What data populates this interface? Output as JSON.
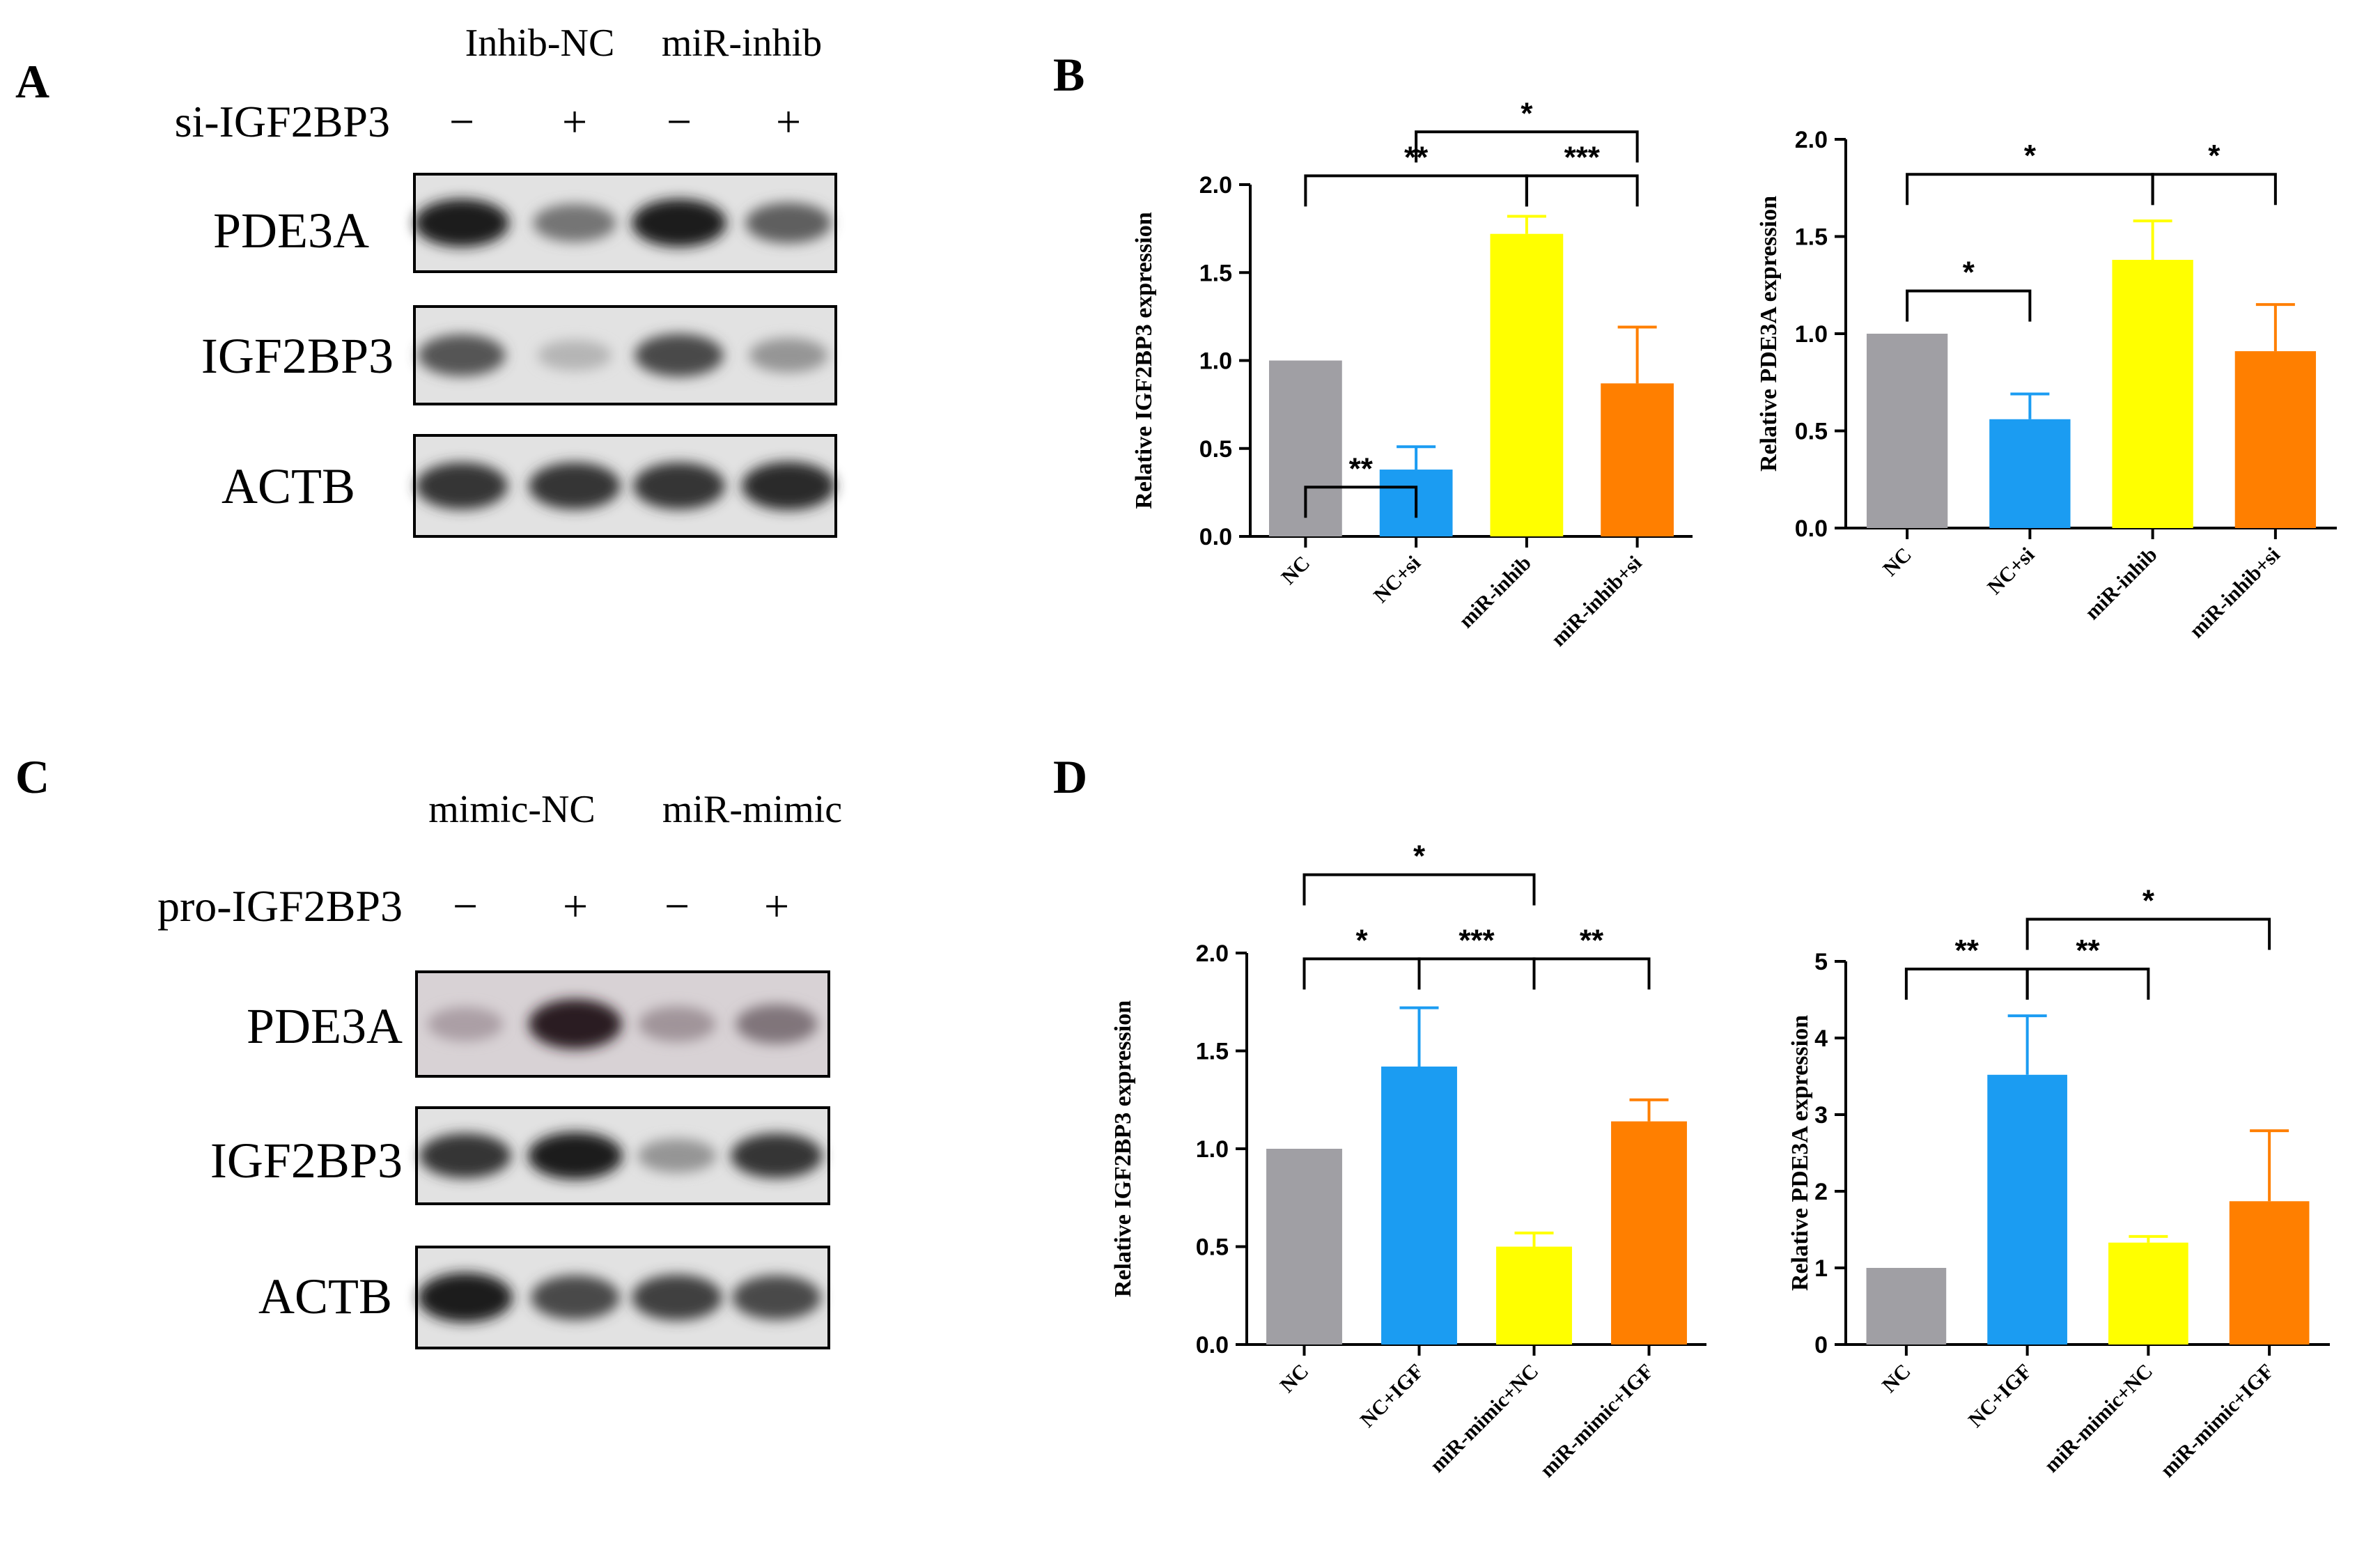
{
  "panels": {
    "A": {
      "letter": "A",
      "group_labels": [
        "Inhib-NC",
        "miR-inhib"
      ],
      "treatment_label": "si-IGF2BP3",
      "signs": [
        "−",
        "+",
        "−",
        "+"
      ],
      "blot_labels": [
        "PDE3A",
        "IGF2BP3",
        "ACTB"
      ],
      "band_intensity": [
        [
          0.95,
          0.55,
          0.95,
          0.65
        ],
        [
          0.7,
          0.25,
          0.75,
          0.4
        ],
        [
          0.85,
          0.85,
          0.85,
          0.9
        ]
      ]
    },
    "B": {
      "letter": "B"
    },
    "C": {
      "letter": "C",
      "group_labels": [
        "mimic-NC",
        "miR-mimic"
      ],
      "treatment_label": "pro-IGF2BP3",
      "signs": [
        "−",
        "+",
        "−",
        "+"
      ],
      "blot_labels": [
        "PDE3A",
        "IGF2BP3",
        "ACTB"
      ],
      "band_intensity": [
        [
          0.3,
          0.9,
          0.35,
          0.5
        ],
        [
          0.85,
          0.95,
          0.4,
          0.85
        ],
        [
          0.95,
          0.75,
          0.8,
          0.75
        ]
      ]
    },
    "D": {
      "letter": "D"
    }
  },
  "chart_data": [
    {
      "id": "B1",
      "type": "bar",
      "ylabel": "Relative IGF2BP3 expression",
      "categories": [
        "NC",
        "NC+si",
        "miR-inhib",
        "miR-inhib+si"
      ],
      "values": [
        1.0,
        0.38,
        1.72,
        0.87
      ],
      "errors": [
        0,
        0.13,
        0.1,
        0.32
      ],
      "ylim": [
        0,
        2.0
      ],
      "yticks": [
        "0.0",
        "0.5",
        "1.0",
        "1.5",
        "2.0"
      ],
      "colors": [
        "#a09fa4",
        "#1b9cf2",
        "#ffff00",
        "#ff7f00"
      ],
      "significance": [
        {
          "from": 0,
          "to": 1,
          "label": "**",
          "level": 0.28
        },
        {
          "from": 0,
          "to": 2,
          "label": "**",
          "level": 2.05
        },
        {
          "from": 2,
          "to": 3,
          "label": "***",
          "level": 2.05
        },
        {
          "from": 1,
          "to": 3,
          "label": "*",
          "level": 2.3
        }
      ]
    },
    {
      "id": "B2",
      "type": "bar",
      "ylabel": "Relative PDE3A expression",
      "categories": [
        "NC",
        "NC+si",
        "miR-inhib",
        "miR-inhib+si"
      ],
      "values": [
        1.0,
        0.56,
        1.38,
        0.91
      ],
      "errors": [
        0,
        0.13,
        0.2,
        0.24
      ],
      "ylim": [
        0,
        2.0
      ],
      "yticks": [
        "0.0",
        "0.5",
        "1.0",
        "1.5",
        "2.0"
      ],
      "colors": [
        "#a09fa4",
        "#1b9cf2",
        "#ffff00",
        "#ff7f00"
      ],
      "significance": [
        {
          "from": 0,
          "to": 1,
          "label": "*",
          "level": 1.22
        },
        {
          "from": 0,
          "to": 2,
          "label": "*",
          "level": 1.82
        },
        {
          "from": 2,
          "to": 3,
          "label": "*",
          "level": 1.82
        }
      ]
    },
    {
      "id": "D1",
      "type": "bar",
      "ylabel": "Relative IGF2BP3 expression",
      "categories": [
        "NC",
        "NC+IGF",
        "miR-mimic+NC",
        "miR-mimic+IGF"
      ],
      "values": [
        1.0,
        1.42,
        0.5,
        1.14
      ],
      "errors": [
        0,
        0.3,
        0.07,
        0.11
      ],
      "ylim": [
        0,
        2.0
      ],
      "yticks": [
        "0.0",
        "0.5",
        "1.0",
        "1.5",
        "2.0"
      ],
      "colors": [
        "#a09fa4",
        "#1b9cf2",
        "#ffff00",
        "#ff7f00"
      ],
      "significance": [
        {
          "from": 0,
          "to": 1,
          "label": "*",
          "level": 1.97
        },
        {
          "from": 1,
          "to": 2,
          "label": "***",
          "level": 1.97
        },
        {
          "from": 2,
          "to": 3,
          "label": "**",
          "level": 1.97
        },
        {
          "from": 0,
          "to": 2,
          "label": "*",
          "level": 2.4
        }
      ]
    },
    {
      "id": "D2",
      "type": "bar",
      "ylabel": "Relative PDE3A expression",
      "categories": [
        "NC",
        "NC+IGF",
        "miR-mimic+NC",
        "miR-mimic+IGF"
      ],
      "values": [
        1.0,
        3.52,
        1.33,
        1.87
      ],
      "errors": [
        0,
        0.77,
        0.08,
        0.92
      ],
      "ylim": [
        0,
        5
      ],
      "yticks": [
        "0",
        "1",
        "2",
        "3",
        "4",
        "5"
      ],
      "colors": [
        "#a09fa4",
        "#1b9cf2",
        "#ffff00",
        "#ff7f00"
      ],
      "significance": [
        {
          "from": 0,
          "to": 1,
          "label": "**",
          "level": 4.9
        },
        {
          "from": 1,
          "to": 2,
          "label": "**",
          "level": 4.9
        },
        {
          "from": 1,
          "to": 3,
          "label": "*",
          "level": 5.55
        }
      ]
    }
  ]
}
